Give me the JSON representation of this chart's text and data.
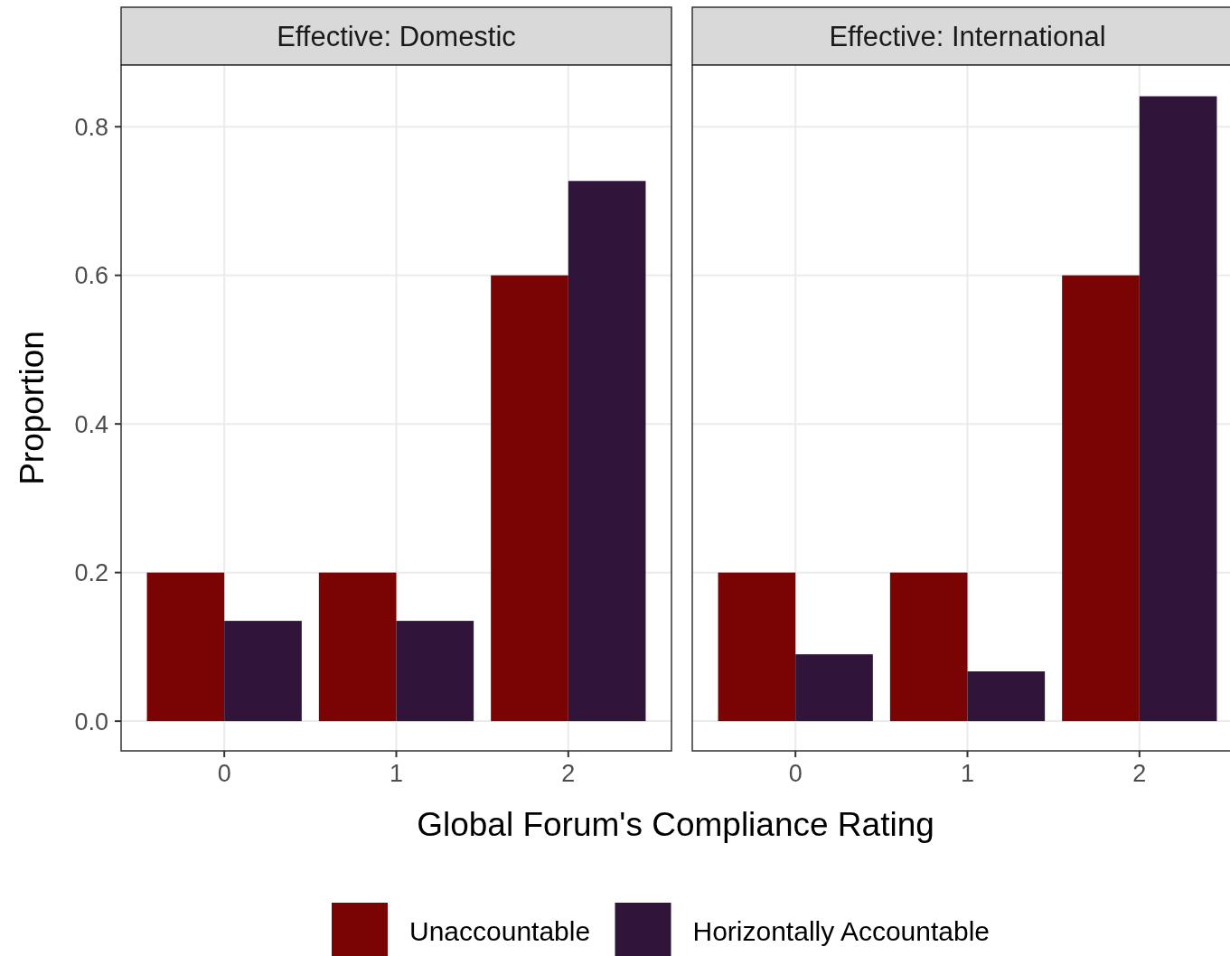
{
  "chart_data": [
    {
      "type": "bar",
      "title": "Effective: Domestic",
      "xlabel": "Global Forum's Compliance Rating",
      "ylabel": "Proportion",
      "categories": [
        "0",
        "1",
        "2"
      ],
      "series": [
        {
          "name": "Unaccountable",
          "color": "#7a0403",
          "values": [
            0.2,
            0.2,
            0.6
          ]
        },
        {
          "name": "Horizontally Accountable",
          "color": "#311439",
          "values": [
            0.135,
            0.135,
            0.727
          ]
        }
      ],
      "ylim": [
        -0.04,
        0.883
      ],
      "yticks": [
        {
          "value": 0,
          "label": "0.0"
        },
        0.2,
        0.4,
        0.6,
        0.8
      ],
      "grid": true,
      "legend": "bottom"
    },
    {
      "type": "bar",
      "title": "Effective: International",
      "categories": [
        "0",
        "1",
        "2"
      ],
      "series": [
        {
          "color": "#7a0403",
          "values": [
            0.2,
            0.2,
            0.6
          ]
        },
        {
          "color": "#311439",
          "values": [
            0.09,
            0.067,
            0.841
          ]
        }
      ],
      "ylim": [
        -0.04,
        0.883
      ],
      "yticks": [
        0,
        0.2,
        0.4,
        0.6,
        0.8
      ],
      "grid": true,
      "tick_labels": "x"
    }
  ]
}
